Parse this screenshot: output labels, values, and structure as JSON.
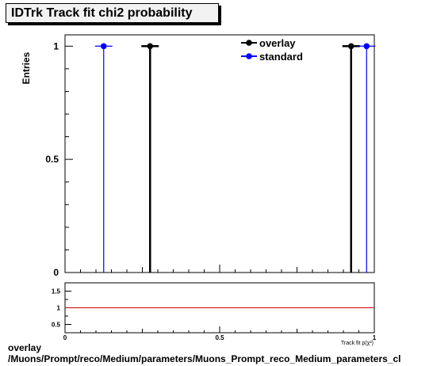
{
  "chart_data": [
    {
      "type": "scatter",
      "title": "IDTrk Track fit chi2 probability",
      "ylabel": "Entries",
      "xlim": [
        0,
        1
      ],
      "ylim": [
        0,
        1.05
      ],
      "yticks": [
        "0",
        "0.5",
        "1"
      ],
      "legend_position": "top-right",
      "series": [
        {
          "name": "overlay",
          "color": "#000000",
          "points": [
            {
              "x": 0.275,
              "y": 1
            },
            {
              "x": 0.925,
              "y": 1
            }
          ]
        },
        {
          "name": "standard",
          "color": "#0000ff",
          "points": [
            {
              "x": 0.125,
              "y": 1
            },
            {
              "x": 0.975,
              "y": 1
            }
          ]
        }
      ]
    },
    {
      "type": "line",
      "xlim": [
        0,
        1
      ],
      "ylim": [
        0.25,
        1.75
      ],
      "xticks": [
        "0",
        "0.5",
        "1"
      ],
      "yticks": [
        "0.5",
        "1",
        "1.5"
      ],
      "xlabel": "Track fit p(χ²)",
      "reference_line": {
        "y": 1,
        "color": "#cc0000"
      }
    }
  ],
  "caption": {
    "line1": "overlay",
    "line2": "/Muons/Prompt/reco/Medium/parameters/Muons_Prompt_reco_Medium_parameters_cl"
  }
}
